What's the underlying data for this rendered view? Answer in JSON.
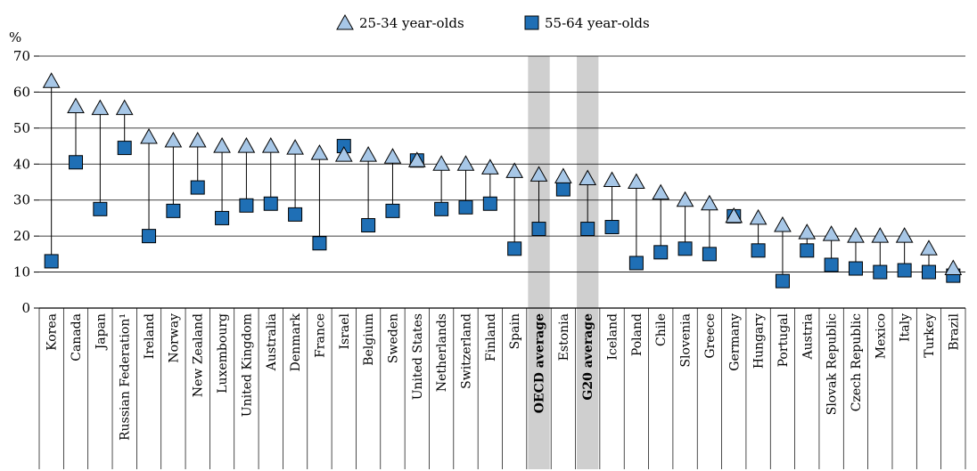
{
  "chart_data": {
    "type": "scatter",
    "yunit": "%",
    "ylim": [
      0,
      70
    ],
    "yticks": [
      0,
      10,
      20,
      30,
      40,
      50,
      60,
      70
    ],
    "grid": true,
    "legend_position": "top-center",
    "colors": {
      "series1": "#a7c7e7",
      "series2": "#1f6fb5",
      "highlight": "#cfcfcf"
    },
    "categories": [
      "Korea",
      "Canada",
      "Japan",
      "Russian Federation¹",
      "Ireland",
      "Norway",
      "New Zealand",
      "Luxembourg",
      "United Kingdom",
      "Australia",
      "Denmark",
      "France",
      "Israel",
      "Belgium",
      "Sweden",
      "United States",
      "Netherlands",
      "Switzerland",
      "Finland",
      "Spain",
      "OECD average",
      "Estonia",
      "G20 average",
      "Iceland",
      "Poland",
      "Chile",
      "Slovenia",
      "Greece",
      "Germany",
      "Hungary",
      "Portugal",
      "Austria",
      "Slovak Republic",
      "Czech Republic",
      "Mexico",
      "Italy",
      "Turkey",
      "Brazil"
    ],
    "highlighted": [
      "OECD average",
      "G20 average"
    ],
    "series": [
      {
        "name": "25-34 year-olds",
        "marker": "triangle",
        "values": [
          63,
          56,
          55.5,
          55.5,
          47.5,
          46.5,
          46.5,
          45,
          45,
          45,
          44.5,
          43,
          42.5,
          42.5,
          42,
          41,
          40,
          40,
          39,
          38,
          37,
          36.5,
          36,
          35.5,
          35,
          32,
          30,
          29,
          25.5,
          25,
          23,
          21,
          20.5,
          20,
          20,
          20,
          16.5,
          11
        ]
      },
      {
        "name": "55-64 year-olds",
        "marker": "square",
        "values": [
          13,
          40.5,
          27.5,
          44.5,
          20,
          27,
          33.5,
          25,
          28.5,
          29,
          26,
          18,
          45,
          23,
          27,
          41,
          27.5,
          28,
          29,
          16.5,
          22,
          33,
          22,
          22.5,
          12.5,
          15.5,
          16.5,
          15,
          25.5,
          16,
          7.5,
          16,
          12,
          11,
          10,
          10.5,
          10,
          9
        ]
      }
    ]
  }
}
